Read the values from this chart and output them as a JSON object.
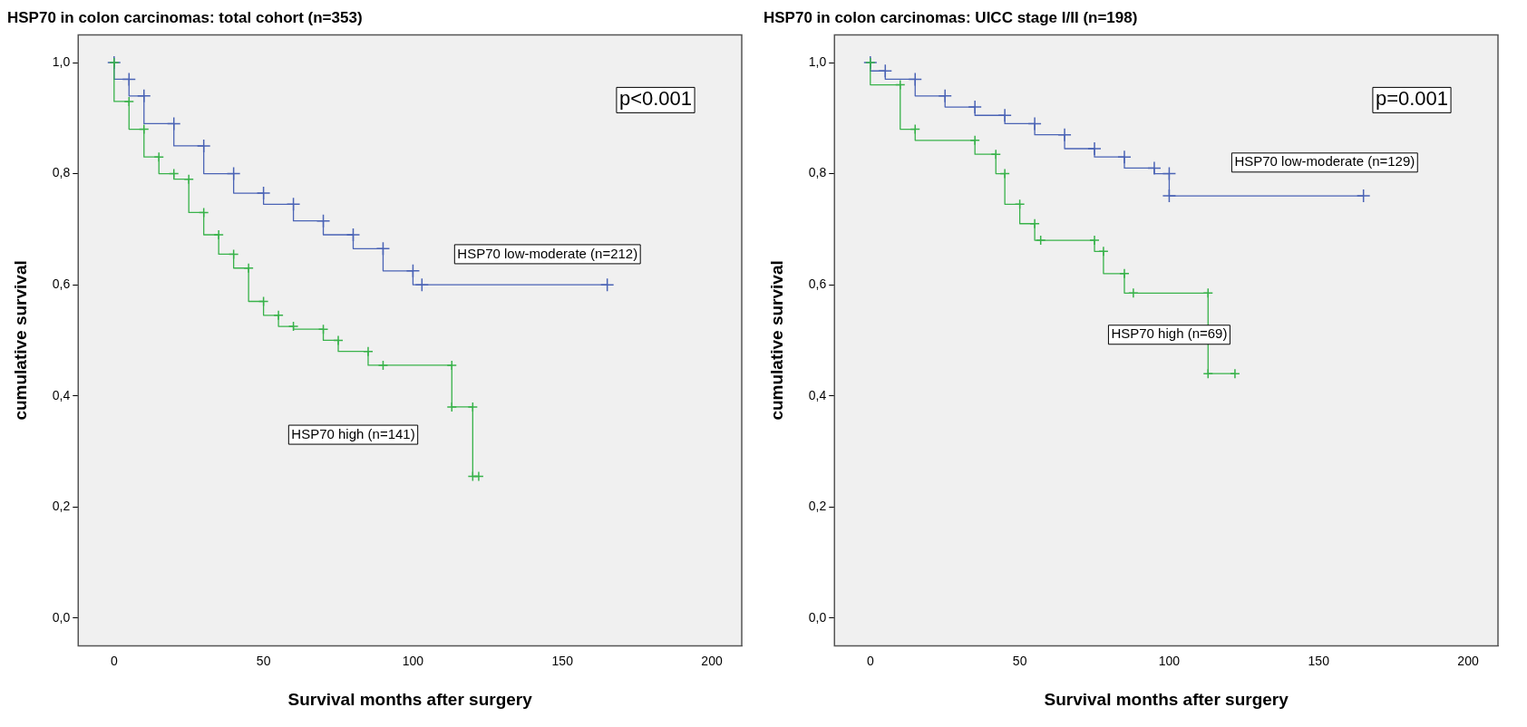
{
  "chart_data": [
    {
      "type": "step",
      "title": "HSP70 in colon carcinomas: total cohort (n=353)",
      "xlabel": "Survival months after surgery",
      "ylabel": "cumulative survival",
      "xlim": [
        -12,
        210
      ],
      "ylim": [
        -0.05,
        1.05
      ],
      "xticks": [
        0,
        50,
        100,
        150,
        200
      ],
      "yticks": [
        {
          "value": 0,
          "label": "0,0"
        },
        {
          "value": 0.2,
          "label": "0,2"
        },
        {
          "value": 0.4,
          "label": "0,4"
        },
        {
          "value": 0.6,
          "label": "0,6"
        },
        {
          "value": 0.8,
          "label": "0,8"
        },
        {
          "value": 1,
          "label": "1,0"
        }
      ],
      "grid": false,
      "legend": false,
      "marker": "cross",
      "annotations": [
        "p<0.001"
      ],
      "series": [
        {
          "name": "HSP70 low-moderate (n=212)",
          "color": "#4a63b5",
          "x": [
            0,
            5,
            10,
            20,
            30,
            40,
            50,
            60,
            70,
            80,
            90,
            100,
            103,
            165
          ],
          "values": [
            1,
            0.97,
            0.94,
            0.89,
            0.85,
            0.8,
            0.765,
            0.745,
            0.715,
            0.69,
            0.665,
            0.625,
            0.6,
            0.6
          ]
        },
        {
          "name": "HSP70 high (n=141)",
          "color": "#38b24a",
          "x": [
            0,
            5,
            10,
            15,
            20,
            25,
            30,
            35,
            40,
            45,
            50,
            55,
            60,
            70,
            75,
            85,
            90,
            113,
            113,
            120,
            120,
            122
          ],
          "values": [
            1,
            0.93,
            0.88,
            0.83,
            0.8,
            0.79,
            0.73,
            0.69,
            0.655,
            0.63,
            0.57,
            0.545,
            0.525,
            0.52,
            0.5,
            0.48,
            0.455,
            0.455,
            0.38,
            0.38,
            0.255,
            0.255
          ]
        }
      ]
    },
    {
      "type": "step",
      "title": "HSP70 in colon carcinomas: UICC stage I/II (n=198)",
      "xlabel": "Survival months after surgery",
      "ylabel": "cumulative survival",
      "xlim": [
        -12,
        210
      ],
      "ylim": [
        -0.05,
        1.05
      ],
      "xticks": [
        0,
        50,
        100,
        150,
        200
      ],
      "yticks": [
        {
          "value": 0,
          "label": "0,0"
        },
        {
          "value": 0.2,
          "label": "0,2"
        },
        {
          "value": 0.4,
          "label": "0,4"
        },
        {
          "value": 0.6,
          "label": "0,6"
        },
        {
          "value": 0.8,
          "label": "0,8"
        },
        {
          "value": 1,
          "label": "1,0"
        }
      ],
      "grid": false,
      "legend": false,
      "marker": "cross",
      "annotations": [
        "p=0.001"
      ],
      "series": [
        {
          "name": "HSP70 low-moderate (n=129)",
          "color": "#4a63b5",
          "x": [
            0,
            5,
            15,
            25,
            35,
            45,
            55,
            65,
            75,
            85,
            95,
            100,
            100,
            165
          ],
          "values": [
            1,
            0.985,
            0.97,
            0.94,
            0.92,
            0.905,
            0.89,
            0.87,
            0.845,
            0.83,
            0.81,
            0.8,
            0.76,
            0.76
          ]
        },
        {
          "name": "HSP70 high (n=69)",
          "color": "#38b24a",
          "x": [
            0,
            10,
            15,
            35,
            42,
            45,
            50,
            55,
            57,
            75,
            78,
            85,
            88,
            113,
            113,
            122
          ],
          "values": [
            1,
            0.96,
            0.88,
            0.86,
            0.835,
            0.8,
            0.745,
            0.71,
            0.68,
            0.68,
            0.66,
            0.62,
            0.585,
            0.585,
            0.44,
            0.44
          ]
        }
      ]
    }
  ]
}
